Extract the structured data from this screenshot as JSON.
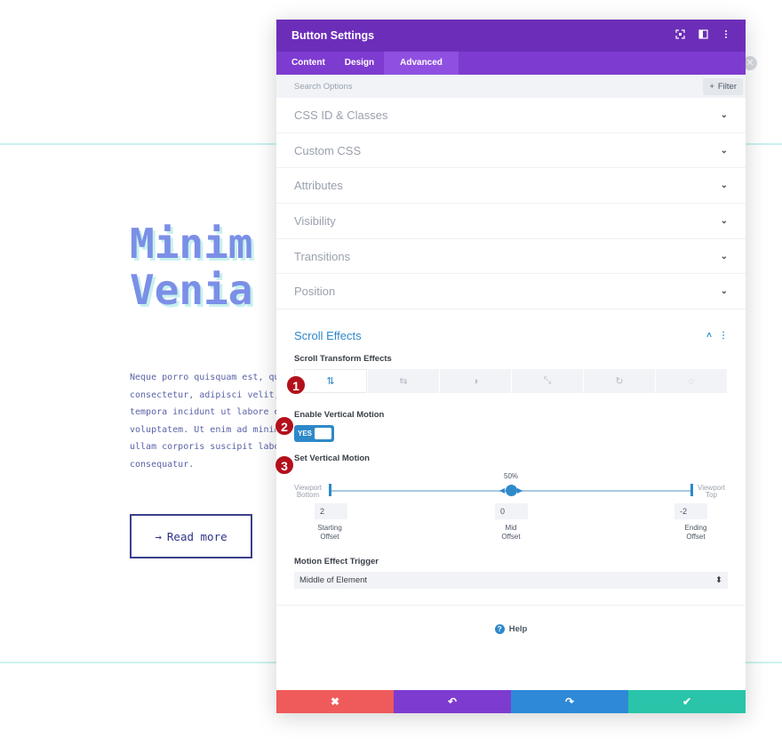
{
  "background": {
    "heading_line1": "Minim",
    "heading_line2": "Venia",
    "paragraph": [
      "Neque porro quisquam est, qu",
      "consectetur, adipisci velit,",
      "tempora incidunt ut labore e",
      "voluptatem. Ut enim ad minim",
      "ullam corporis suscipit labo",
      "consequatur."
    ],
    "read_more_arrow": "→",
    "read_more_label": "Read more"
  },
  "modal": {
    "title": "Button Settings",
    "header_icons": [
      "focus-icon",
      "split-view-icon",
      "more-vertical-icon"
    ],
    "tabs": [
      {
        "label": "Content",
        "active": false
      },
      {
        "label": "Design",
        "active": false
      },
      {
        "label": "Advanced",
        "active": true
      }
    ],
    "search_placeholder": "Search Options",
    "filter_plus": "+",
    "filter_label": "Filter",
    "sections": [
      "CSS ID & Classes",
      "Custom CSS",
      "Attributes",
      "Visibility",
      "Transitions",
      "Position"
    ],
    "section_chevron": "⌄",
    "scroll_effects": {
      "title": "Scroll Effects",
      "collapse_glyph": "˄",
      "more_glyph": "⋮",
      "transform_label": "Scroll Transform Effects",
      "effect_tabs": [
        {
          "icon": "vertical-motion-icon",
          "glyph": "⇅",
          "active": true
        },
        {
          "icon": "horizontal-motion-icon",
          "glyph": "⇆",
          "active": false
        },
        {
          "icon": "fade-icon",
          "glyph": "◑",
          "active": false
        },
        {
          "icon": "scale-icon",
          "glyph": "⤡",
          "active": false
        },
        {
          "icon": "rotate-icon",
          "glyph": "↻",
          "active": false
        },
        {
          "icon": "blur-icon",
          "glyph": "◌",
          "active": false
        }
      ],
      "enable_label": "Enable Vertical Motion",
      "toggle_label": "YES",
      "set_label": "Set Vertical Motion",
      "mid_percent": "50%",
      "viewport_bottom": [
        "Viewport",
        "Bottom"
      ],
      "viewport_top": [
        "Viewport",
        "Top"
      ],
      "starting_offset_value": "2",
      "mid_offset_value": "0",
      "ending_offset_value": "-2",
      "starting_offset_label": [
        "Starting",
        "Offset"
      ],
      "mid_offset_label": [
        "Mid",
        "Offset"
      ],
      "ending_offset_label": [
        "Ending",
        "Offset"
      ],
      "trigger_label": "Motion Effect Trigger",
      "trigger_value": "Middle of Element",
      "trigger_arrows": "⬍"
    },
    "help_glyph": "?",
    "help_label": "Help",
    "footer": {
      "cancel_glyph": "✖",
      "undo_glyph": "↶",
      "redo_glyph": "↷",
      "save_glyph": "✔"
    }
  },
  "badges": [
    "1",
    "2",
    "3"
  ],
  "close_bubble_glyph": "✕"
}
